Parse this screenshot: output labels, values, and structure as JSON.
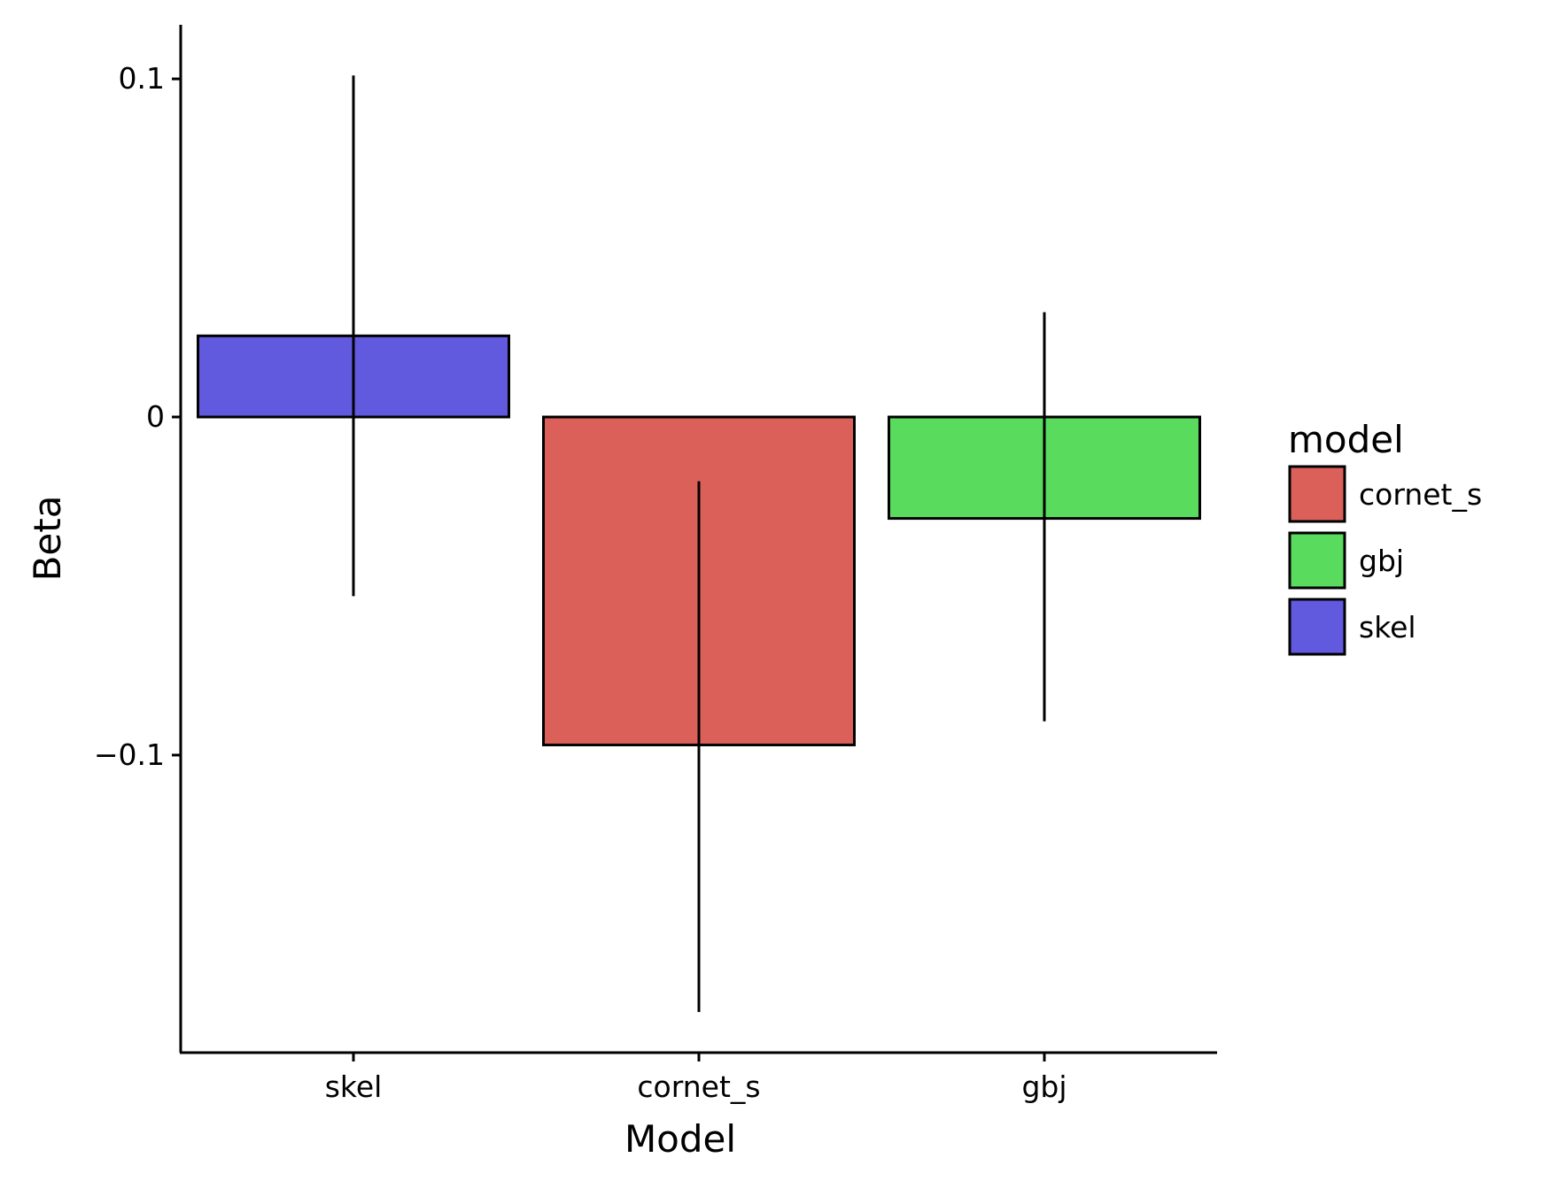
{
  "chart_data": {
    "type": "bar",
    "title": "",
    "xlabel": "Model",
    "ylabel": "Beta",
    "categories": [
      "skel",
      "cornet_s",
      "gbj"
    ],
    "values": [
      0.024,
      -0.097,
      -0.03
    ],
    "error_bars": [
      {
        "low": -0.053,
        "high": 0.101
      },
      {
        "low": -0.176,
        "high": -0.019
      },
      {
        "low": -0.09,
        "high": 0.031
      }
    ],
    "colors": {
      "skel": "#6159DE",
      "cornet_s": "#DB605A",
      "gbj": "#59DB5E"
    },
    "ylim": [
      -0.188,
      0.116
    ],
    "yticks": [
      {
        "value": 0.1,
        "label": "0.1"
      },
      {
        "value": 0,
        "label": "0"
      },
      {
        "value": -0.1,
        "label": "−0.1"
      }
    ],
    "grid": false,
    "legend": {
      "title": "model",
      "placement": "right",
      "entries": [
        {
          "label": "cornet_s",
          "color": "#DB605A"
        },
        {
          "label": "gbj",
          "color": "#59DB5E"
        },
        {
          "label": "skel",
          "color": "#6159DE"
        }
      ]
    }
  }
}
